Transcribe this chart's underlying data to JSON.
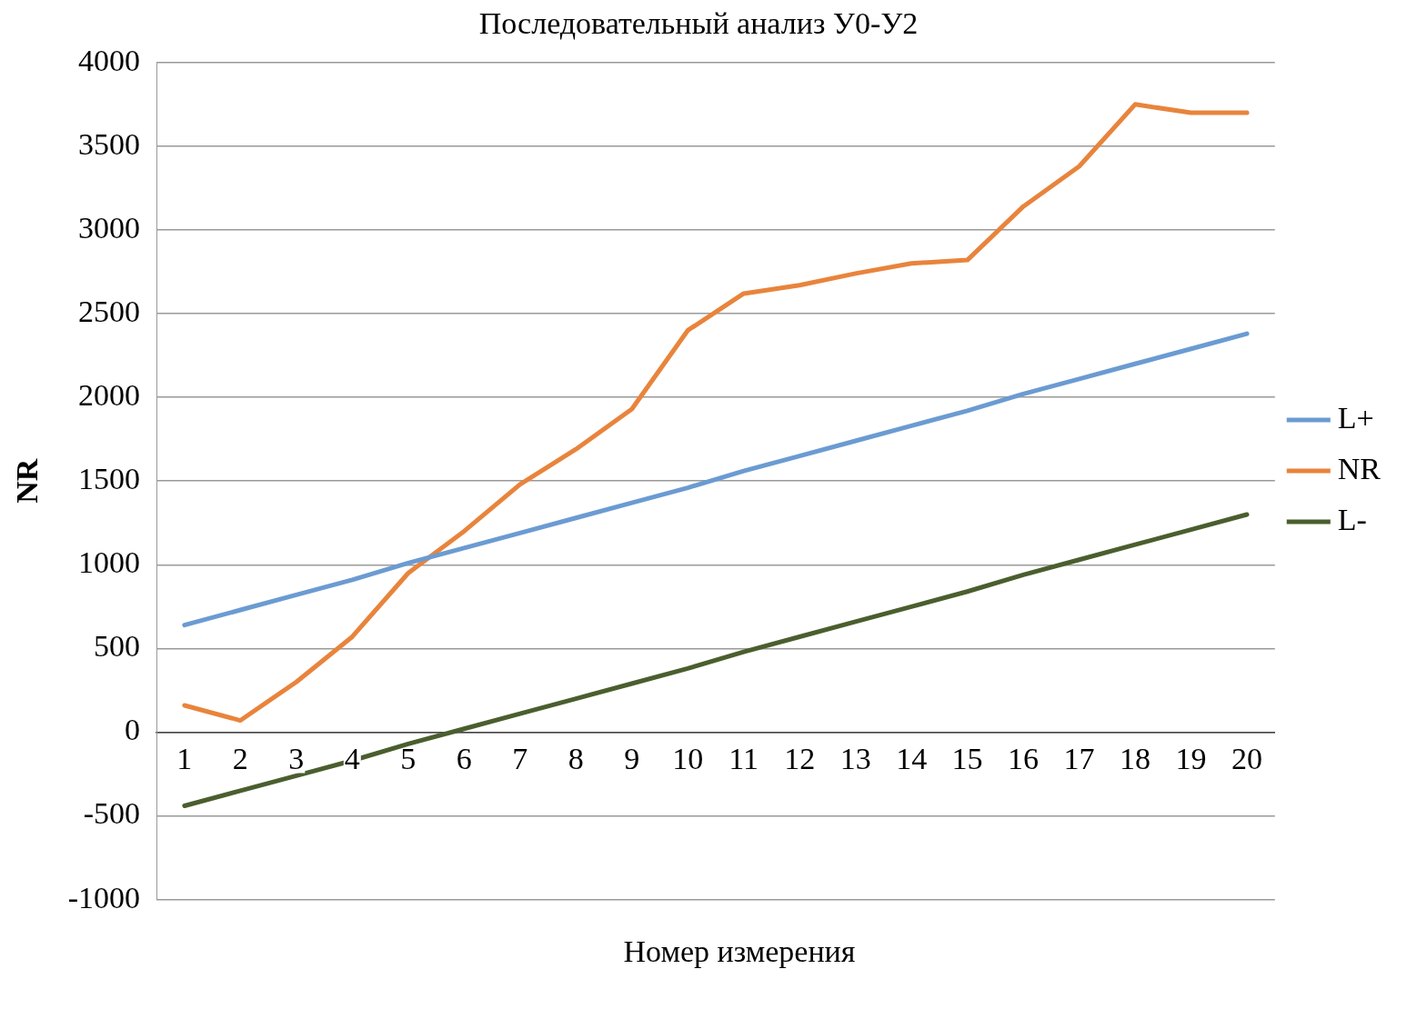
{
  "chart_data": {
    "type": "line",
    "title": "Последовательный анализ У0-У2",
    "xlabel": "Номер измерения",
    "ylabel": "NR",
    "categories": [
      "1",
      "2",
      "3",
      "4",
      "5",
      "6",
      "7",
      "8",
      "9",
      "10",
      "11",
      "12",
      "13",
      "14",
      "15",
      "16",
      "17",
      "18",
      "19",
      "20"
    ],
    "series": [
      {
        "name": "L+",
        "color": "#6b9bd2",
        "values": [
          640,
          730,
          820,
          910,
          1010,
          1100,
          1190,
          1280,
          1370,
          1460,
          1560,
          1650,
          1740,
          1830,
          1920,
          2020,
          2110,
          2200,
          2290,
          2380
        ]
      },
      {
        "name": "NR",
        "color": "#e8843c",
        "values": [
          160,
          70,
          300,
          570,
          950,
          1200,
          1480,
          1690,
          1930,
          2400,
          2620,
          2670,
          2740,
          2800,
          2820,
          3140,
          3380,
          3750,
          3700,
          3700
        ]
      },
      {
        "name": "L-",
        "color": "#4b5e2e",
        "values": [
          -440,
          -350,
          -260,
          -170,
          -70,
          20,
          110,
          200,
          290,
          380,
          480,
          570,
          660,
          750,
          840,
          940,
          1030,
          1120,
          1210,
          1300
        ]
      }
    ],
    "ylim": [
      -1000,
      4000
    ],
    "yticks": [
      -1000,
      -500,
      0,
      500,
      1000,
      1500,
      2000,
      2500,
      3000,
      3500,
      4000
    ],
    "grid": "y",
    "legend": "right",
    "marker": "none",
    "line_style": "solid"
  }
}
